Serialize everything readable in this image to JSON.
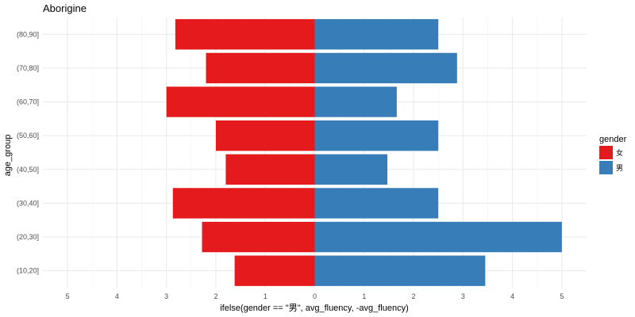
{
  "chart_data": {
    "type": "bar",
    "orientation": "horizontal",
    "layout": "population-pyramid",
    "title": "Aborigine",
    "xlabel": "ifelse(gender == \"男\", avg_fluency, -avg_fluency)",
    "ylabel": "age_group",
    "categories": [
      "(10,20]",
      "(20,30]",
      "(30,40]",
      "(40,50]",
      "(50,60]",
      "(60,70]",
      "(70,80]",
      "(80,90]"
    ],
    "series": [
      {
        "name": "女",
        "color": "#e41a1c",
        "values": [
          -1.62,
          -2.28,
          -2.87,
          -1.8,
          -2.0,
          -3.0,
          -2.2,
          -2.82
        ]
      },
      {
        "name": "男",
        "color": "#377eb8",
        "values": [
          3.45,
          5.0,
          2.5,
          1.47,
          2.5,
          1.66,
          2.88,
          2.5
        ]
      }
    ],
    "xlim": [
      -5.5,
      5.5
    ],
    "xticks": [
      -5,
      -4,
      -3,
      -2,
      -1,
      0,
      1,
      2,
      3,
      4,
      5
    ],
    "xtick_labels": [
      "5",
      "4",
      "3",
      "2",
      "1",
      "0",
      "1",
      "2",
      "3",
      "4",
      "5"
    ],
    "grid": true,
    "legend": {
      "title": "gender",
      "position": "right"
    }
  }
}
